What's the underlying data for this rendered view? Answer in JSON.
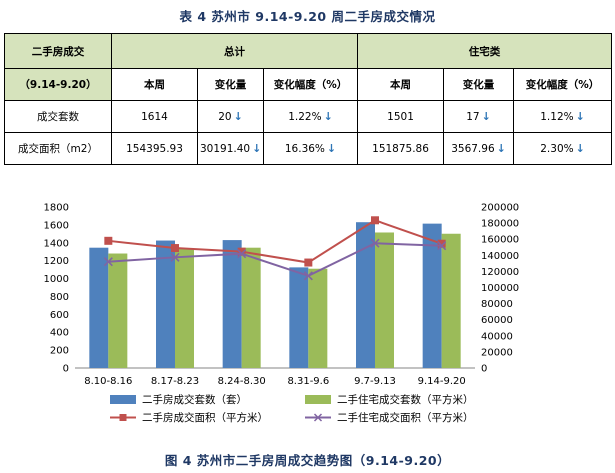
{
  "table": {
    "caption": "表 4   苏州市 9.14-9.20 周二手房成交情况",
    "header": {
      "row_label": "二手房成交",
      "group_total": "总计",
      "group_residential": "住宅类",
      "period": "（9.14-9.20）",
      "col_this_week": "本周",
      "col_change": "变化量",
      "col_change_pct": "变化幅度（%）"
    },
    "rows": [
      {
        "label": "成交套数",
        "total_this_week": "1614",
        "total_change": "20",
        "total_change_pct": "1.22%",
        "res_this_week": "1501",
        "res_change": "17",
        "res_change_pct": "1.12%"
      },
      {
        "label": "成交面积（m2）",
        "total_this_week": "154395.93",
        "total_change": "30191.40",
        "total_change_pct": "16.36%",
        "res_this_week": "151875.86",
        "res_change": "3567.96",
        "res_change_pct": "2.30%"
      }
    ],
    "arrow_glyph": "↓",
    "colors": {
      "header_fill": "#d6e3bc",
      "arrow": "#2e75b6"
    }
  },
  "chart_data": {
    "type": "bar",
    "categories": [
      "8.10-8.16",
      "8.17-8.23",
      "8.24-8.30",
      "8.31-9.6",
      "9.7-9.13",
      "9.14-9.20"
    ],
    "left_axis": {
      "ylim": [
        0,
        1800
      ],
      "ticks": [
        0,
        200,
        400,
        600,
        800,
        1000,
        1200,
        1400,
        1600,
        1800
      ]
    },
    "right_axis": {
      "ylim": [
        0,
        200000
      ],
      "ticks": [
        0,
        20000,
        40000,
        60000,
        80000,
        100000,
        120000,
        140000,
        160000,
        180000,
        200000
      ]
    },
    "series": [
      {
        "name": "二手房成交套数（套）",
        "kind": "bar",
        "axis": "left",
        "color": "#4f81bd",
        "values": [
          1345,
          1425,
          1430,
          1125,
          1630,
          1614
        ]
      },
      {
        "name": "二手住宅成交套数（平方米）",
        "kind": "bar",
        "axis": "left",
        "color": "#9bbb59",
        "values": [
          1280,
          1335,
          1345,
          1110,
          1515,
          1501
        ]
      },
      {
        "name": "二手房成交面积（平方米）",
        "kind": "line",
        "axis": "right",
        "color": "#c0504d",
        "marker": "square",
        "values": [
          158000,
          149000,
          144500,
          131000,
          183500,
          154395.93
        ]
      },
      {
        "name": "二手住宅成交面积（平方米）",
        "kind": "line",
        "axis": "right",
        "color": "#8064a2",
        "marker": "x",
        "values": [
          132000,
          137500,
          142000,
          114500,
          155000,
          151875.86
        ]
      }
    ],
    "grid": false,
    "legend_placement": "bottom"
  },
  "figure": {
    "caption": "图 4  苏州市二手房周成交趋势图（9.14-9.20）"
  }
}
